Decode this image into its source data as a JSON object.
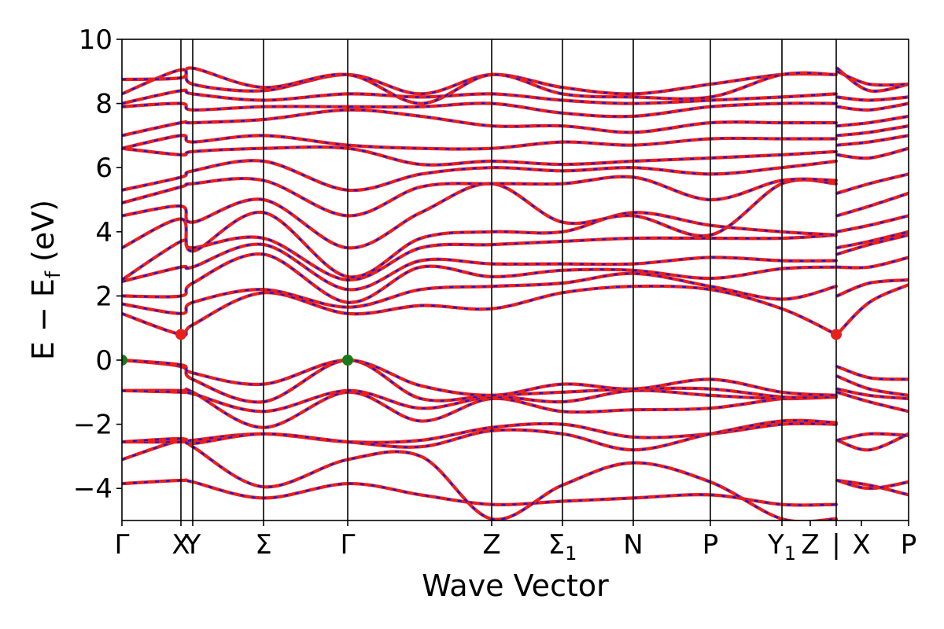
{
  "chart_data": {
    "type": "line",
    "title": "",
    "xlabel": "Wave Vector",
    "ylabel": "E − E",
    "ylabel_sub": "f",
    "ylabel_unit": " (eV)",
    "ylim": [
      -5,
      10
    ],
    "xlim": [
      0,
      1
    ],
    "yticks": [
      -4,
      -2,
      0,
      2,
      4,
      6,
      8,
      10
    ],
    "ytick_labels": [
      "−4",
      "−2",
      "0",
      "2",
      "4",
      "6",
      "8",
      "10"
    ],
    "kpoints": [
      {
        "label": "Γ",
        "sub": "",
        "x": 0.0
      },
      {
        "label": "X",
        "sub": "",
        "x": 0.075
      },
      {
        "label": "Y",
        "sub": "",
        "x": 0.09
      },
      {
        "label": "Σ",
        "sub": "",
        "x": 0.18
      },
      {
        "label": "Γ",
        "sub": "",
        "x": 0.287
      },
      {
        "label": "Z",
        "sub": "",
        "x": 0.47
      },
      {
        "label": "Σ",
        "sub": "1",
        "x": 0.56
      },
      {
        "label": "N",
        "sub": "",
        "x": 0.65
      },
      {
        "label": "P",
        "sub": "",
        "x": 0.748
      },
      {
        "label": "Y",
        "sub": "1",
        "x": 0.839
      },
      {
        "label": "Z",
        "sub": "",
        "x": 0.875
      },
      {
        "label": "|",
        "sub": "",
        "x": 0.908
      },
      {
        "label": "X",
        "sub": "",
        "x": 0.94
      },
      {
        "label": "P",
        "sub": "",
        "x": 1.0
      }
    ],
    "kline_positions": [
      0.075,
      0.09,
      0.18,
      0.287,
      0.47,
      0.56,
      0.65,
      0.748,
      0.839,
      0.908
    ],
    "break_position": 0.908,
    "grid": false,
    "legend": "none",
    "colors": {
      "band": "#e8201c",
      "band_overlay": "#1515e6",
      "vbm": "#1a7a1a",
      "cbm": "#e8201c"
    },
    "markers": [
      {
        "type": "VBM",
        "x": 0.0,
        "y": 0.0,
        "color": "#1a7a1a"
      },
      {
        "type": "VBM",
        "x": 0.287,
        "y": 0.0,
        "color": "#1a7a1a"
      },
      {
        "type": "CBM",
        "x": 0.075,
        "y": 0.8,
        "color": "#e8201c"
      },
      {
        "type": "CBM",
        "x": 0.908,
        "y": 0.8,
        "color": "#e8201c"
      }
    ],
    "segment_nodes": [
      0.0,
      0.075,
      0.09,
      0.18,
      0.287,
      0.38,
      0.47,
      0.56,
      0.65,
      0.748,
      0.839,
      0.908,
      0.909,
      0.95,
      1.0
    ],
    "series": [
      {
        "values": [
          -3.85,
          -3.75,
          -3.8,
          -4.3,
          -3.85,
          -4.2,
          -4.5,
          -4.4,
          -4.3,
          -4.2,
          -4.5,
          -4.5,
          -3.75,
          -3.9,
          -4.2
        ]
      },
      {
        "values": [
          -3.1,
          -2.5,
          -2.7,
          -3.95,
          -3.1,
          -3.0,
          -4.95,
          -3.9,
          -3.2,
          -3.8,
          -4.95,
          -4.95,
          -3.75,
          -4.0,
          -3.8
        ]
      },
      {
        "values": [
          -2.55,
          -2.55,
          -2.5,
          -2.3,
          -2.55,
          -2.5,
          -2.1,
          -2.0,
          -2.4,
          -2.3,
          -2.0,
          -2.0,
          -2.5,
          -2.8,
          -2.3
        ]
      },
      {
        "values": [
          -2.55,
          -2.45,
          -2.6,
          -2.3,
          -2.55,
          -2.7,
          -2.2,
          -2.3,
          -2.8,
          -2.3,
          -1.9,
          -1.95,
          -2.5,
          -2.3,
          -2.35
        ]
      },
      {
        "values": [
          -0.95,
          -0.95,
          -1.0,
          -2.1,
          -1.0,
          -1.9,
          -1.2,
          -1.6,
          -1.55,
          -1.5,
          -1.2,
          -1.1,
          -1.0,
          -1.3,
          -1.6
        ]
      },
      {
        "values": [
          -0.95,
          -1.0,
          -1.05,
          -1.6,
          -0.95,
          -1.5,
          -1.15,
          -1.3,
          -0.95,
          -1.1,
          -1.2,
          -1.15,
          -0.9,
          -1.1,
          -1.2
        ]
      },
      {
        "values": [
          0.0,
          -0.2,
          -0.6,
          -1.3,
          0.0,
          -1.2,
          -1.1,
          -1.0,
          -0.9,
          -0.9,
          -1.15,
          -1.15,
          -0.5,
          -0.9,
          -1.1
        ]
      },
      {
        "values": [
          0.0,
          -0.15,
          -0.4,
          -0.75,
          0.0,
          -0.8,
          -1.1,
          -0.75,
          -0.9,
          -0.6,
          -1.0,
          -1.1,
          -0.2,
          -0.55,
          -0.6
        ]
      },
      {
        "values": [
          1.45,
          0.8,
          1.1,
          2.1,
          1.45,
          1.7,
          1.6,
          2.1,
          2.3,
          2.2,
          1.6,
          0.8,
          0.8,
          1.8,
          2.35
        ]
      },
      {
        "values": [
          1.75,
          1.45,
          1.8,
          2.2,
          1.65,
          2.2,
          2.3,
          2.4,
          2.7,
          2.3,
          1.9,
          2.3,
          2.0,
          2.4,
          2.5
        ]
      },
      {
        "values": [
          2.0,
          2.0,
          2.4,
          3.3,
          1.8,
          2.9,
          2.6,
          2.8,
          2.8,
          2.55,
          2.85,
          2.9,
          2.9,
          2.9,
          3.2
        ]
      },
      {
        "values": [
          2.45,
          2.9,
          2.9,
          3.6,
          2.2,
          3.1,
          3.0,
          3.0,
          3.0,
          3.2,
          3.1,
          3.1,
          3.3,
          3.6,
          3.9
        ]
      },
      {
        "values": [
          2.5,
          3.7,
          3.5,
          3.8,
          2.5,
          3.5,
          3.6,
          3.7,
          3.8,
          3.8,
          3.8,
          3.9,
          3.5,
          3.7,
          4.0
        ]
      },
      {
        "values": [
          3.5,
          4.4,
          3.4,
          4.6,
          2.6,
          3.8,
          4.0,
          4.0,
          4.6,
          4.2,
          4.0,
          3.9,
          4.0,
          4.2,
          4.5
        ]
      },
      {
        "values": [
          4.5,
          4.8,
          4.3,
          5.0,
          3.5,
          4.6,
          5.5,
          4.3,
          4.5,
          3.9,
          5.5,
          5.5,
          4.5,
          4.8,
          5.2
        ]
      },
      {
        "values": [
          4.9,
          5.4,
          5.5,
          5.6,
          4.5,
          5.4,
          5.5,
          5.5,
          5.7,
          5.0,
          5.6,
          5.6,
          5.2,
          5.5,
          5.8
        ]
      },
      {
        "values": [
          5.3,
          5.7,
          5.9,
          6.2,
          5.3,
          5.8,
          6.0,
          5.9,
          6.0,
          5.8,
          6.0,
          6.2,
          6.4,
          6.3,
          6.6
        ]
      },
      {
        "values": [
          6.6,
          6.4,
          6.5,
          6.6,
          6.6,
          6.1,
          6.2,
          6.1,
          6.2,
          6.3,
          6.4,
          6.5,
          6.7,
          6.8,
          7.0
        ]
      },
      {
        "values": [
          6.6,
          7.0,
          6.8,
          7.0,
          6.7,
          6.6,
          6.6,
          6.8,
          6.7,
          6.9,
          6.9,
          6.9,
          7.0,
          7.1,
          7.3
        ]
      },
      {
        "values": [
          7.0,
          7.4,
          7.4,
          7.5,
          7.8,
          7.6,
          7.3,
          7.3,
          7.1,
          7.4,
          7.4,
          7.4,
          7.3,
          7.4,
          7.6
        ]
      },
      {
        "values": [
          7.9,
          8.0,
          7.8,
          7.9,
          7.9,
          7.9,
          8.0,
          7.7,
          7.6,
          7.9,
          8.0,
          8.0,
          7.9,
          7.8,
          8.0
        ]
      },
      {
        "values": [
          8.0,
          8.4,
          8.3,
          8.1,
          8.3,
          8.2,
          8.3,
          8.1,
          8.0,
          8.1,
          8.2,
          8.3,
          8.2,
          8.1,
          8.2
        ]
      },
      {
        "values": [
          8.3,
          9.05,
          8.6,
          8.4,
          8.9,
          8.3,
          8.9,
          8.5,
          8.3,
          8.6,
          8.9,
          8.9,
          9.1,
          8.4,
          8.6
        ]
      },
      {
        "values": [
          8.75,
          8.8,
          9.1,
          8.5,
          8.9,
          8.0,
          8.9,
          8.3,
          8.2,
          8.2,
          8.9,
          8.9,
          9.0,
          8.6,
          8.6
        ]
      }
    ]
  }
}
